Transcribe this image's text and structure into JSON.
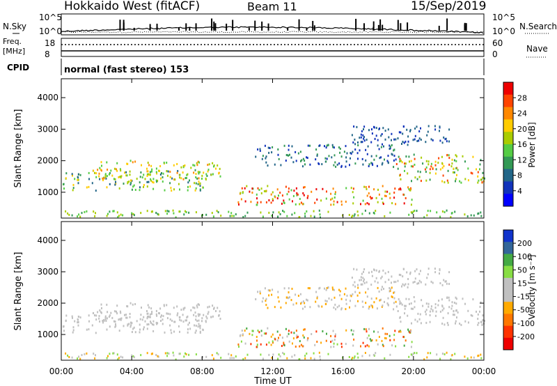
{
  "header": {
    "station": "Hokkaido West (fitACF)",
    "beam": "Beam 11",
    "date": "15/Sep/2019"
  },
  "noise_panel": {
    "left_label": "N.Sky",
    "right_label": "N.Search",
    "left_ticks": [
      "10^5",
      "10^0"
    ],
    "right_ticks": [
      "10^5",
      "10^0"
    ]
  },
  "freq_panel": {
    "left_label_1": "Freq.",
    "left_label_2": "[MHz]",
    "right_label": "Nave",
    "left_ticks": [
      "18",
      "8"
    ],
    "right_ticks": [
      "60",
      "0"
    ]
  },
  "cpid": {
    "label": "CPID",
    "value": "normal (fast stereo) 153"
  },
  "chart_data": {
    "type": "heatmap",
    "x": [
      "00:00",
      "04:00",
      "08:00",
      "12:00",
      "16:00",
      "20:00",
      "00:00"
    ],
    "xlabel": "Time UT",
    "ylabel": "Slant Range [km]",
    "yticks": [
      1000,
      2000,
      3000,
      4000
    ],
    "ylim": [
      180,
      4600
    ],
    "panels": [
      {
        "name": "Power [dB]",
        "colorbar": {
          "label": "Power [dB]",
          "ticks": [
            "28",
            "24",
            "20",
            "16",
            "12",
            "8",
            "4"
          ],
          "colors": [
            "#ee0000",
            "#ff4400",
            "#ff8800",
            "#ffcc00",
            "#aacc00",
            "#55cc44",
            "#339955",
            "#226688",
            "#1133bb",
            "#0000ff"
          ]
        }
      },
      {
        "name": "Velocity [m s^-1]",
        "colorbar": {
          "label": "Velocity [m s⁻¹]",
          "ticks": [
            "200",
            "100",
            "50",
            "15",
            "-15",
            "-50",
            "-100",
            "-200"
          ],
          "colors": [
            "#1133cc",
            "#336699",
            "#44aa44",
            "#88dd44",
            "#c0c0c0",
            "#c0c0c0",
            "#ffaa00",
            "#ff7700",
            "#ff3300",
            "#ee0000"
          ]
        }
      }
    ]
  }
}
